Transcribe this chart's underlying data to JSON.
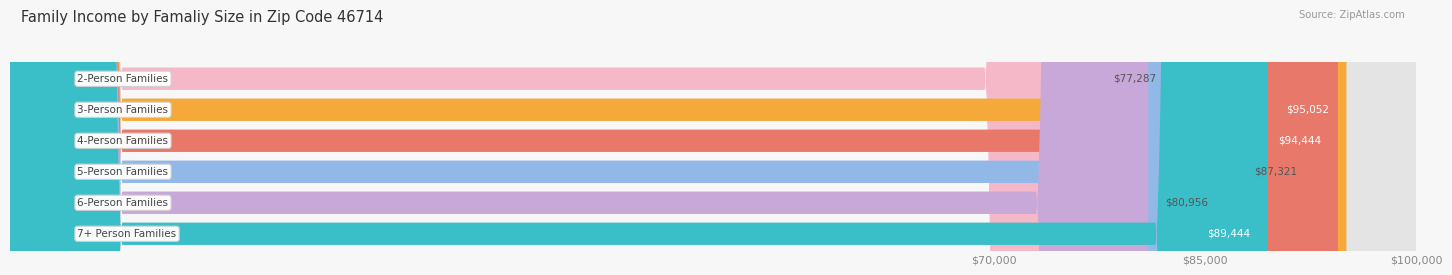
{
  "title": "Family Income by Famaliy Size in Zip Code 46714",
  "source": "Source: ZipAtlas.com",
  "categories": [
    "2-Person Families",
    "3-Person Families",
    "4-Person Families",
    "5-Person Families",
    "6-Person Families",
    "7+ Person Families"
  ],
  "values": [
    77287,
    95052,
    94444,
    87321,
    80956,
    89444
  ],
  "bar_colors": [
    "#f5b8c8",
    "#f5a93a",
    "#e8796a",
    "#92b8e8",
    "#c8a8d8",
    "#3abfc8"
  ],
  "xmin": 0,
  "xmax": 100000,
  "xticks": [
    70000,
    85000,
    100000
  ],
  "xticklabels": [
    "$70,000",
    "$85,000",
    "$100,000"
  ],
  "bg_color": "#f7f7f7",
  "bar_bg_color": "#e4e4e4",
  "figwidth": 14.06,
  "figheight": 3.05,
  "title_fontsize": 10.5,
  "label_fontsize": 7.5,
  "value_fontsize": 7.5,
  "value_threshold": 88000,
  "bar_height": 0.72,
  "bar_gap": 0.28
}
